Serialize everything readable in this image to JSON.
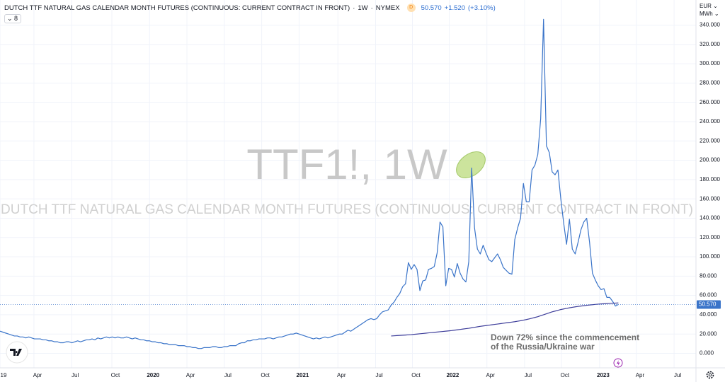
{
  "chart_data": {
    "type": "line",
    "title": "DUTCH TTF NATURAL GAS CALENDAR MONTH FUTURES (CONTINUOUS: CURRENT CONTRACT IN FRONT)",
    "interval": "1W",
    "exchange": "NYMEX",
    "source_badge": "D",
    "price": "50.570",
    "change": "+1.520",
    "change_pct": "(+3.10%)",
    "indicator_count": "8",
    "currency": "EUR",
    "unit": "MWh",
    "watermark_symbol": "TTF1!, 1W",
    "watermark_name": "DUTCH TTF NATURAL GAS CALENDAR MONTH FUTURES (CONTINUOUS: CURRENT CONTRACT IN FRONT)",
    "annotation": [
      "Down 72% since the commencement",
      "of the Russia/Ukraine war"
    ],
    "grid": true,
    "xlim": [
      0,
      242
    ],
    "xticks": [
      {
        "value": 0,
        "label": "19"
      },
      {
        "value": 11.8,
        "label": "Apr"
      },
      {
        "value": 24.9,
        "label": "Jul"
      },
      {
        "value": 38.9,
        "label": "Oct"
      },
      {
        "value": 52,
        "label": "2020"
      },
      {
        "value": 65,
        "label": "Apr"
      },
      {
        "value": 78,
        "label": "Jul"
      },
      {
        "value": 91,
        "label": "Oct"
      },
      {
        "value": 104,
        "label": "2021"
      },
      {
        "value": 117.5,
        "label": "Apr"
      },
      {
        "value": 130.6,
        "label": "Jul"
      },
      {
        "value": 143.4,
        "label": "Oct"
      },
      {
        "value": 156.2,
        "label": "2022"
      },
      {
        "value": 169.3,
        "label": "Apr"
      },
      {
        "value": 182.4,
        "label": "Jul"
      },
      {
        "value": 195.2,
        "label": "Oct"
      },
      {
        "value": 208.5,
        "label": "2023"
      },
      {
        "value": 221.3,
        "label": "Apr"
      },
      {
        "value": 234.4,
        "label": "Jul"
      }
    ],
    "ylim": [
      -15,
      366
    ],
    "yticks": [
      {
        "value": 0,
        "label": "0.000"
      },
      {
        "value": 20,
        "label": "20.000"
      },
      {
        "value": 40,
        "label": "40.000"
      },
      {
        "value": 60,
        "label": "60.000"
      },
      {
        "value": 80,
        "label": "80.000"
      },
      {
        "value": 100,
        "label": "100.000"
      },
      {
        "value": 120,
        "label": "120.000"
      },
      {
        "value": 140,
        "label": "140.000"
      },
      {
        "value": 160,
        "label": "160.000"
      },
      {
        "value": 180,
        "label": "180.000"
      },
      {
        "value": 200,
        "label": "200.000"
      },
      {
        "value": 220,
        "label": "220.000"
      },
      {
        "value": 240,
        "label": "240.000"
      },
      {
        "value": 260,
        "label": "260.000"
      },
      {
        "value": 280,
        "label": "280.000"
      },
      {
        "value": 300,
        "label": "300.000"
      },
      {
        "value": 320,
        "label": "320.000"
      },
      {
        "value": 340,
        "label": "340.000"
      }
    ],
    "series": [
      {
        "color": "#3a74c9",
        "values": [
          23,
          22,
          21,
          20,
          19,
          18,
          18,
          17,
          17,
          16,
          17,
          16,
          15,
          15,
          15,
          14,
          14,
          13,
          13,
          12,
          12,
          11,
          11,
          12,
          12,
          11,
          12,
          13,
          12,
          13,
          14,
          14,
          15,
          14,
          16,
          15,
          16,
          17,
          16,
          17,
          16,
          17,
          16,
          16,
          17,
          16,
          15,
          16,
          15,
          14,
          14,
          13,
          13,
          12,
          12,
          11,
          11,
          10,
          10,
          9,
          9,
          9,
          8,
          8,
          8,
          7,
          7,
          6,
          6,
          5,
          5,
          6,
          6,
          6,
          7,
          7,
          6,
          6,
          7,
          7,
          8,
          8,
          8,
          10,
          11,
          11,
          13,
          13,
          14,
          14,
          15,
          15,
          15,
          16,
          16,
          15,
          16,
          17,
          17,
          18,
          19,
          20,
          20,
          21,
          20,
          19,
          18,
          17,
          16,
          15,
          16,
          15,
          16,
          17,
          16,
          17,
          18,
          19,
          20,
          20,
          22,
          24,
          23,
          25,
          27,
          29,
          31,
          33,
          35,
          36,
          35,
          36,
          40,
          43,
          44,
          45,
          50,
          53,
          58,
          62,
          69,
          72,
          94,
          87,
          92,
          87,
          65,
          75,
          76,
          87,
          88,
          90,
          104,
          136,
          131,
          70,
          88,
          87,
          79,
          93,
          83,
          77,
          74,
          95,
          192,
          130,
          108,
          103,
          112,
          104,
          97,
          95,
          99,
          103,
          97,
          89,
          86,
          83,
          82,
          118,
          130,
          140,
          176,
          157,
          157,
          190,
          195,
          206,
          243,
          346,
          215,
          208,
          188,
          185,
          190,
          160,
          135,
          113,
          139,
          108,
          103,
          115,
          128,
          136,
          140,
          115,
          83,
          76,
          70,
          66,
          67,
          58,
          58,
          54,
          49,
          50.57
        ]
      },
      {
        "color": "#3d3d9a",
        "values": [
          null,
          null,
          null,
          null,
          null,
          null,
          null,
          null,
          null,
          null,
          null,
          null,
          null,
          null,
          null,
          null,
          null,
          null,
          null,
          null,
          null,
          null,
          null,
          null,
          null,
          null,
          null,
          null,
          null,
          null,
          null,
          null,
          null,
          null,
          null,
          null,
          null,
          null,
          null,
          null,
          null,
          null,
          null,
          null,
          null,
          null,
          null,
          null,
          null,
          null,
          null,
          null,
          null,
          null,
          null,
          null,
          null,
          null,
          null,
          null,
          null,
          null,
          null,
          null,
          null,
          null,
          null,
          null,
          null,
          null,
          null,
          null,
          null,
          null,
          null,
          null,
          null,
          null,
          null,
          null,
          null,
          null,
          null,
          null,
          null,
          null,
          null,
          null,
          null,
          null,
          null,
          null,
          null,
          null,
          null,
          null,
          null,
          null,
          null,
          null,
          null,
          null,
          null,
          null,
          null,
          null,
          null,
          null,
          null,
          null,
          null,
          null,
          null,
          null,
          null,
          null,
          null,
          null,
          null,
          null,
          null,
          null,
          null,
          null,
          null,
          null,
          null,
          null,
          null,
          null,
          null,
          null,
          null,
          null,
          null,
          null,
          18,
          18.2,
          18.4,
          18.6,
          18.8,
          19,
          19.2,
          19.4,
          19.7,
          20,
          20.3,
          20.6,
          20.9,
          21.2,
          21.5,
          21.8,
          22.1,
          22.4,
          22.7,
          23,
          23.3,
          23.6,
          24,
          24.4,
          24.8,
          25.2,
          25.6,
          26,
          26.5,
          27,
          27.5,
          28,
          28.4,
          28.8,
          29.2,
          29.6,
          30,
          30.4,
          30.8,
          31.2,
          31.6,
          32,
          32.4,
          32.8,
          33.3,
          33.8,
          34.4,
          35,
          35.7,
          36.4,
          37.2,
          38,
          39,
          40,
          41,
          42,
          43,
          43.8,
          44.6,
          45.4,
          46,
          46.6,
          47.2,
          47.7,
          48.2,
          48.6,
          49,
          49.4,
          49.8,
          50.1,
          50.4,
          50.7,
          51,
          51.2,
          51.4,
          51.6,
          51.8,
          52,
          52.1,
          52.2
        ]
      }
    ]
  }
}
